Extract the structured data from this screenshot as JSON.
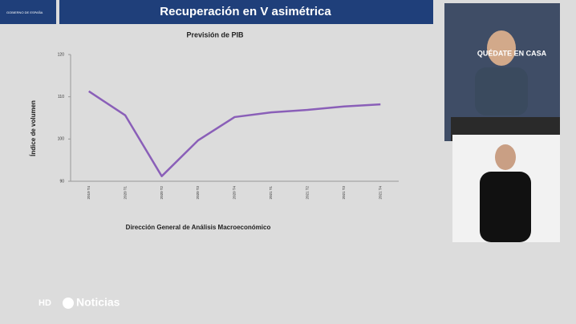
{
  "header": {
    "title": "Recuperación en V asimétrica",
    "logo": "GOBIERNO DE ESPAÑA"
  },
  "video_caption": "QUÉDATE EN CASA",
  "broadcaster": {
    "hd": "HD",
    "name": "Noticias"
  },
  "chart_data": {
    "type": "line",
    "title": "Previsión de PIB",
    "y_label": "Índice de volumen",
    "source": "Dirección General de Análisis Macroeconómico",
    "categories": [
      "2019 T4",
      "2020 T1",
      "2020 T2",
      "2020 T3",
      "2020 T4",
      "2021 T1",
      "2021 T2",
      "2021 T3",
      "2021 T4"
    ],
    "values": [
      111.3,
      105.6,
      91.2,
      99.7,
      105.2,
      106.3,
      106.9,
      107.7,
      108.2
    ],
    "color": "#8a5fb8",
    "ylim": [
      90,
      120
    ],
    "yticks": [
      90,
      100,
      110,
      120
    ],
    "grid": false
  }
}
